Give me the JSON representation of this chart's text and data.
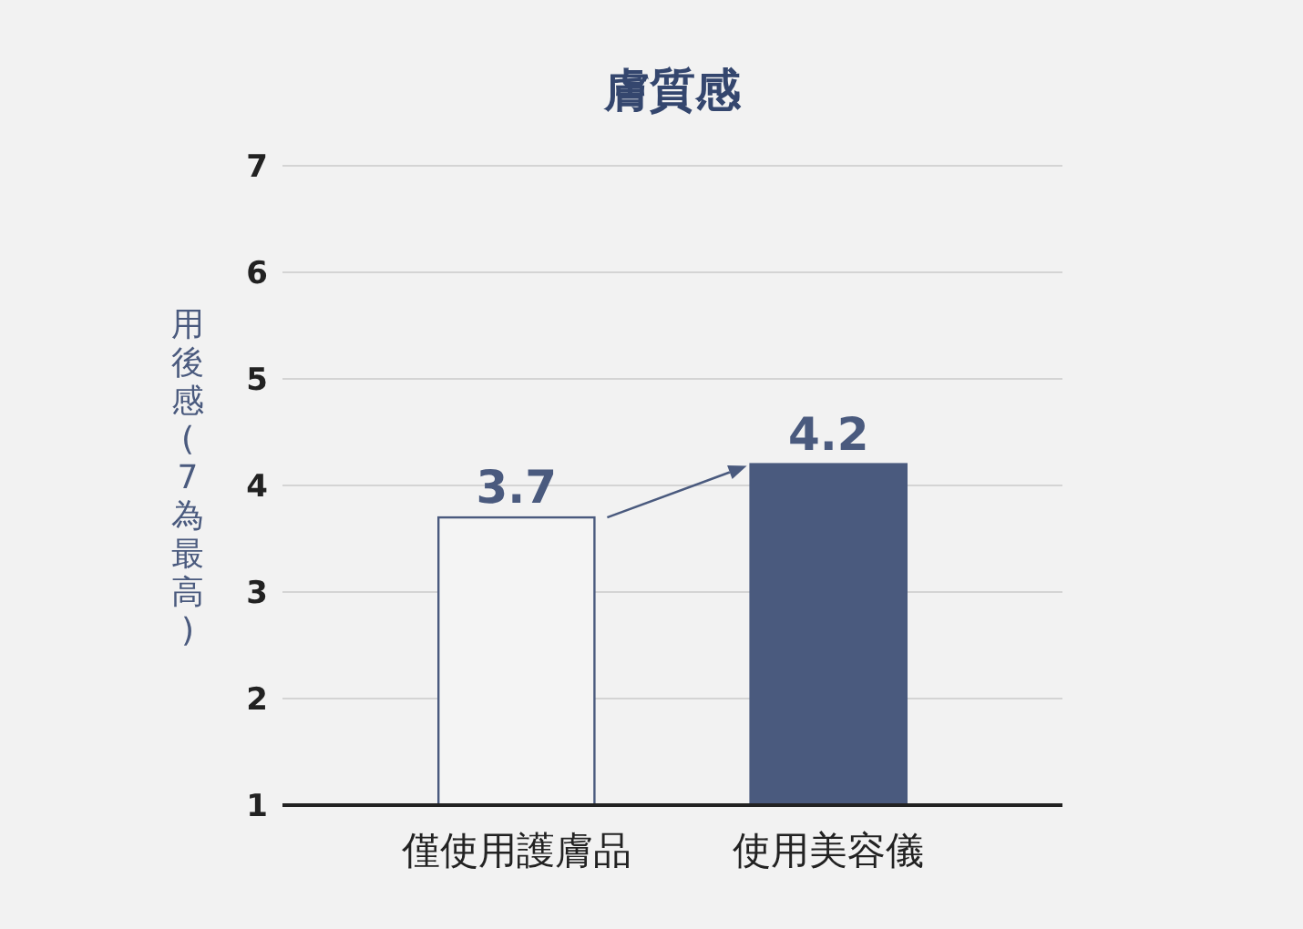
{
  "chart_data": {
    "type": "bar",
    "title": "膚質感",
    "ylabel": "用後感(7為最高)",
    "categories": [
      "僅使用護膚品",
      "使用美容儀"
    ],
    "values": [
      3.7,
      4.2
    ],
    "colors": [
      "#f4f4f4",
      "#4a5a7e"
    ],
    "ylim": [
      1,
      7
    ],
    "yticks": [
      1,
      2,
      3,
      4,
      5,
      6,
      7
    ],
    "grid": "y",
    "data_labels": true
  }
}
